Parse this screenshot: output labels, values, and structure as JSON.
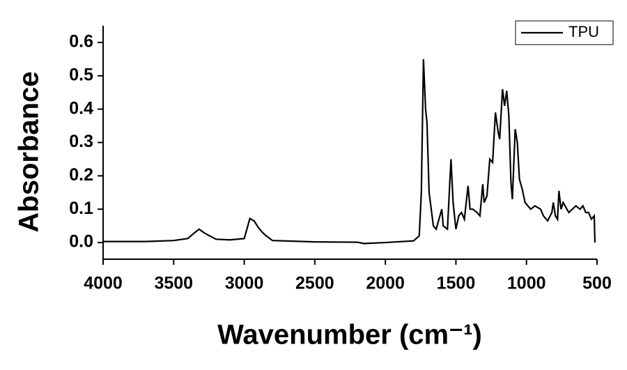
{
  "chart_data": {
    "type": "line",
    "xlabel": "Wavenumber (cm⁻¹)",
    "ylabel": "Absorbance",
    "x": [
      4000,
      3700,
      3500,
      3400,
      3350,
      3320,
      3280,
      3200,
      3100,
      3000,
      2960,
      2930,
      2900,
      2870,
      2850,
      2800,
      2500,
      2200,
      2150,
      2000,
      1800,
      1760,
      1745,
      1730,
      1715,
      1705,
      1690,
      1660,
      1640,
      1600,
      1590,
      1560,
      1535,
      1520,
      1500,
      1480,
      1460,
      1440,
      1414,
      1400,
      1380,
      1350,
      1330,
      1310,
      1300,
      1280,
      1260,
      1240,
      1220,
      1200,
      1190,
      1170,
      1155,
      1140,
      1125,
      1110,
      1100,
      1080,
      1065,
      1050,
      1030,
      1010,
      970,
      940,
      900,
      880,
      850,
      820,
      810,
      795,
      780,
      770,
      755,
      740,
      700,
      650,
      620,
      600,
      580,
      560,
      540,
      520,
      515
    ],
    "series": [
      {
        "name": "TPU",
        "color": "#000000",
        "values": [
          0.003,
          0.003,
          0.006,
          0.012,
          0.03,
          0.04,
          0.028,
          0.01,
          0.008,
          0.012,
          0.072,
          0.065,
          0.045,
          0.03,
          0.022,
          0.006,
          0.002,
          0.001,
          -0.003,
          0.0,
          0.005,
          0.02,
          0.15,
          0.55,
          0.4,
          0.36,
          0.15,
          0.05,
          0.04,
          0.1,
          0.05,
          0.04,
          0.25,
          0.12,
          0.04,
          0.08,
          0.09,
          0.07,
          0.17,
          0.1,
          0.1,
          0.09,
          0.08,
          0.175,
          0.12,
          0.14,
          0.25,
          0.24,
          0.39,
          0.33,
          0.31,
          0.46,
          0.41,
          0.455,
          0.38,
          0.18,
          0.13,
          0.34,
          0.3,
          0.19,
          0.16,
          0.12,
          0.1,
          0.11,
          0.1,
          0.08,
          0.065,
          0.09,
          0.12,
          0.08,
          0.07,
          0.155,
          0.1,
          0.12,
          0.09,
          0.11,
          0.1,
          0.11,
          0.09,
          0.09,
          0.07,
          0.08,
          0.0
        ]
      }
    ],
    "xlim": [
      4000,
      500
    ],
    "ylim": [
      -0.05,
      0.65
    ],
    "xticks": [
      4000,
      3500,
      3000,
      2500,
      2000,
      1500,
      1000,
      500
    ],
    "yticks": [
      {
        "value": 0,
        "label": "0.0"
      },
      0.1,
      0.2,
      0.3,
      0.4,
      0.5,
      0.6
    ],
    "legend": "upper right"
  }
}
